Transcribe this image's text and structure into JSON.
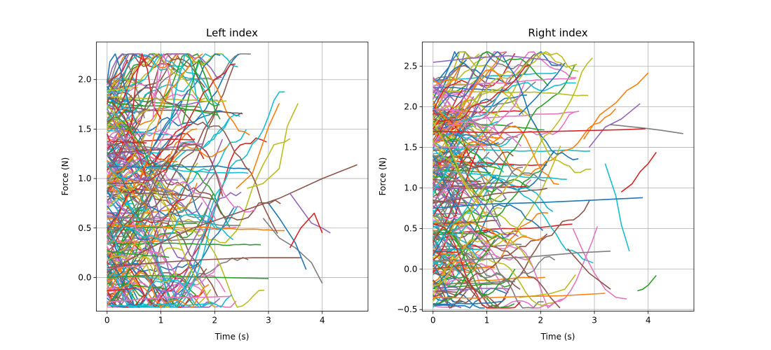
{
  "chart_data": [
    {
      "type": "line",
      "title": "Left index",
      "xlabel": "Time (s)",
      "ylabel": "Force (N)",
      "xlim": [
        -0.2,
        4.85
      ],
      "ylim": [
        -0.34,
        2.38
      ],
      "xticks": [
        0,
        1,
        2,
        3,
        4
      ],
      "yticks": [
        0.0,
        0.5,
        1.0,
        1.5,
        2.0
      ],
      "xtick_labels": [
        "0",
        "1",
        "2",
        "3",
        "4"
      ],
      "ytick_labels": [
        "0.0",
        "0.5",
        "1.0",
        "1.5",
        "2.0"
      ],
      "grid": true,
      "legend": "none",
      "trace_count": 260,
      "series": [
        {
          "x": [
            0,
            0.05,
            0.15,
            0.25,
            0.4,
            0.55
          ],
          "y": [
            1.97,
            2.18,
            2.26,
            2.1,
            1.75,
            1.55
          ]
        },
        {
          "x": [
            0.45,
            0.55,
            0.65,
            0.75,
            0.85,
            1.0
          ],
          "y": [
            1.55,
            2.05,
            2.26,
            2.1,
            1.75,
            1.6
          ]
        },
        {
          "x": [
            0.85,
            0.95,
            1.05,
            1.15,
            1.25,
            1.4
          ],
          "y": [
            1.6,
            2.1,
            2.26,
            2.05,
            1.75,
            1.5
          ]
        },
        {
          "x": [
            1.15,
            1.3,
            1.45,
            1.55,
            1.65,
            1.75,
            1.9
          ],
          "y": [
            1.5,
            1.95,
            2.26,
            2.2,
            1.85,
            1.7,
            1.5
          ]
        },
        {
          "x": [
            1.4,
            1.55,
            1.7,
            1.85,
            2.0,
            2.1
          ],
          "y": [
            1.55,
            1.9,
            2.2,
            2.0,
            1.7,
            1.6
          ]
        },
        {
          "x": [
            0,
            0.8,
            1.6,
            2.4,
            3.2,
            4.0,
            4.65
          ],
          "y": [
            0.05,
            0.3,
            0.5,
            0.65,
            0.8,
            1.0,
            1.14
          ]
        },
        {
          "x": [
            2.6,
            2.9,
            3.2,
            3.35,
            3.55
          ],
          "y": [
            0.9,
            0.95,
            1.1,
            1.53,
            1.76
          ]
        },
        {
          "x": [
            2.4,
            2.7,
            3.0,
            3.2
          ],
          "y": [
            0.9,
            1.05,
            1.52,
            1.76
          ]
        },
        {
          "x": [
            3.4,
            3.6,
            3.8,
            4.0,
            4.15
          ],
          "y": [
            0.85,
            0.7,
            0.55,
            0.5,
            0.45
          ]
        },
        {
          "x": [
            2.9,
            3.2,
            3.5,
            3.8,
            4.0
          ],
          "y": [
            0.6,
            0.4,
            0.3,
            0.15,
            -0.06
          ]
        },
        {
          "x": [
            3.0,
            3.2,
            3.5,
            3.7
          ],
          "y": [
            0.75,
            0.6,
            0.35,
            0.08
          ]
        },
        {
          "x": [
            3.4,
            3.6,
            3.85,
            4.0
          ],
          "y": [
            0.3,
            0.5,
            0.65,
            0.45
          ]
        },
        {
          "x": [
            0,
            0.6,
            1.2,
            1.8,
            2.3
          ],
          "y": [
            -0.25,
            -0.22,
            -0.2,
            -0.2,
            -0.19
          ]
        },
        {
          "x": [
            0,
            0.5,
            1.0,
            1.5,
            2.0
          ],
          "y": [
            -0.28,
            -0.29,
            -0.27,
            -0.28,
            -0.26
          ]
        },
        {
          "x": [
            0,
            0.7,
            1.4,
            2.1,
            3.0
          ],
          "y": [
            0.0,
            0.02,
            0.01,
            0.0,
            -0.01
          ]
        },
        {
          "x": [
            0,
            0.9,
            1.8,
            2.7,
            3.6
          ],
          "y": [
            0.1,
            0.15,
            0.18,
            0.2,
            0.2
          ]
        }
      ]
    },
    {
      "type": "line",
      "title": "Right index",
      "xlabel": "Time (s)",
      "ylabel": "Force (N)",
      "xlim": [
        -0.2,
        4.85
      ],
      "ylim": [
        -0.52,
        2.8
      ],
      "xticks": [
        0,
        1,
        2,
        3,
        4
      ],
      "yticks": [
        -0.5,
        0.0,
        0.5,
        1.0,
        1.5,
        2.0,
        2.5
      ],
      "xtick_labels": [
        "0",
        "1",
        "2",
        "3",
        "4"
      ],
      "ytick_labels": [
        "−0.5",
        "0.0",
        "0.5",
        "1.0",
        "1.5",
        "2.0",
        "2.5"
      ],
      "grid": true,
      "legend": "none",
      "trace_count": 260,
      "series": [
        {
          "x": [
            2.8,
            3.1,
            3.4,
            3.6,
            3.8,
            4.0
          ],
          "y": [
            1.6,
            1.9,
            2.05,
            2.2,
            2.28,
            2.42
          ]
        },
        {
          "x": [
            2.9,
            3.2,
            3.5,
            3.85
          ],
          "y": [
            1.5,
            1.75,
            1.85,
            2.04
          ]
        },
        {
          "x": [
            3.3,
            3.6,
            3.9,
            4.25,
            4.65
          ],
          "y": [
            1.78,
            1.76,
            1.74,
            1.71,
            1.67
          ]
        },
        {
          "x": [
            1.6,
            1.9,
            2.1,
            2.3,
            2.45
          ],
          "y": [
            1.9,
            2.1,
            2.25,
            2.4,
            2.54
          ]
        },
        {
          "x": [
            3.5,
            3.7,
            3.85,
            4.0,
            4.15
          ],
          "y": [
            0.95,
            1.05,
            1.2,
            1.3,
            1.44
          ]
        },
        {
          "x": [
            2.6,
            2.8,
            3.0,
            3.2,
            3.4,
            3.6
          ],
          "y": [
            0.5,
            0.2,
            -0.05,
            -0.25,
            -0.35,
            -0.37
          ]
        },
        {
          "x": [
            3.2,
            3.4,
            3.5,
            3.65
          ],
          "y": [
            1.3,
            0.9,
            0.55,
            0.22
          ]
        },
        {
          "x": [
            3.8,
            3.9,
            4.0,
            4.15
          ],
          "y": [
            -0.27,
            -0.25,
            -0.2,
            -0.08
          ]
        },
        {
          "x": [
            2.5,
            2.7,
            2.9,
            3.1,
            3.3
          ],
          "y": [
            0.25,
            0.1,
            -0.05,
            -0.15,
            -0.25
          ]
        },
        {
          "x": [
            1.6,
            1.9,
            2.2,
            2.45,
            2.65
          ],
          "y": [
            -0.35,
            -0.33,
            -0.3,
            -0.25,
            -0.07
          ]
        },
        {
          "x": [
            0,
            0.8,
            1.6,
            2.4,
            3.2
          ],
          "y": [
            -0.35,
            -0.36,
            -0.34,
            -0.33,
            -0.3
          ]
        },
        {
          "x": [
            0,
            0.7,
            1.4,
            2.1,
            2.4
          ],
          "y": [
            2.55,
            2.6,
            2.63,
            2.58,
            2.5
          ]
        },
        {
          "x": [
            0,
            0.9,
            1.8,
            2.7,
            3.3
          ],
          "y": [
            0.1,
            0.12,
            0.15,
            0.2,
            0.22
          ]
        },
        {
          "x": [
            0,
            1.0,
            2.0,
            3.0,
            3.9
          ],
          "y": [
            0.75,
            0.8,
            0.82,
            0.85,
            0.88
          ]
        },
        {
          "x": [
            0,
            1.2,
            2.4,
            3.6,
            3.95
          ],
          "y": [
            1.7,
            1.68,
            1.7,
            1.72,
            1.73
          ]
        }
      ]
    }
  ],
  "palette": [
    "#1f77b4",
    "#ff7f0e",
    "#2ca02c",
    "#d62728",
    "#9467bd",
    "#8c564b",
    "#e377c2",
    "#7f7f7f",
    "#bcbd22",
    "#17becf"
  ]
}
